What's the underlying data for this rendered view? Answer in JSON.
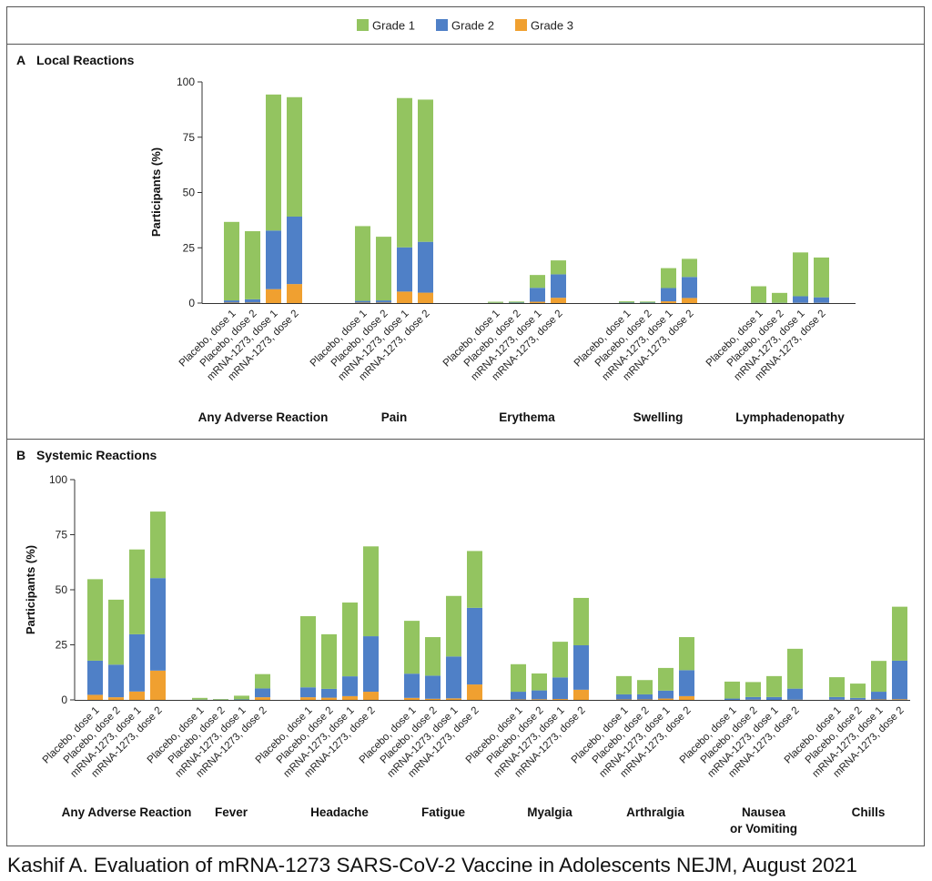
{
  "caption": "Kashif A. Evaluation of mRNA-1273 SARS-CoV-2 Vaccine in Adolescents NEJM, August 2021",
  "colors": {
    "Grade 1": "#93c460",
    "Grade 2": "#4f80c7",
    "Grade 3": "#f0a030",
    "frame": "#555555"
  },
  "chart_data": {
    "type": "bar",
    "stacked": true,
    "legend": {
      "position": "top-center",
      "entries": [
        "Grade 1",
        "Grade 2",
        "Grade 3"
      ]
    },
    "bar_labels": [
      "Placebo, dose 1",
      "Placebo, dose 2",
      "mRNA-1273, dose 1",
      "mRNA-1273, dose 2"
    ],
    "panels": [
      {
        "letter": "A",
        "title": "Local Reactions",
        "ylabel": "Participants (%)",
        "ylim": [
          0,
          100
        ],
        "yticks": [
          0,
          25,
          50,
          75,
          100
        ],
        "groups": [
          {
            "name": "Any Adverse Reaction",
            "bars": [
              {
                "grade1": 35.5,
                "grade2": 1.0,
                "grade3": 0.2
              },
              {
                "grade1": 30.8,
                "grade2": 1.5,
                "grade3": 0.2
              },
              {
                "grade1": 61.5,
                "grade2": 26.5,
                "grade3": 6.3
              },
              {
                "grade1": 54.0,
                "grade2": 30.5,
                "grade3": 8.6
              }
            ]
          },
          {
            "name": "Pain",
            "bars": [
              {
                "grade1": 33.8,
                "grade2": 0.8,
                "grade3": 0.2
              },
              {
                "grade1": 28.8,
                "grade2": 1.0,
                "grade3": 0.2
              },
              {
                "grade1": 67.5,
                "grade2": 20.0,
                "grade3": 5.2
              },
              {
                "grade1": 64.3,
                "grade2": 23.0,
                "grade3": 4.7
              }
            ]
          },
          {
            "name": "Erythema",
            "bars": [
              {
                "grade1": 0.5,
                "grade2": 0.1,
                "grade3": 0
              },
              {
                "grade1": 0.5,
                "grade2": 0.2,
                "grade3": 0
              },
              {
                "grade1": 5.8,
                "grade2": 6.3,
                "grade3": 0.6
              },
              {
                "grade1": 6.3,
                "grade2": 10.6,
                "grade3": 2.4
              }
            ]
          },
          {
            "name": "Swelling",
            "bars": [
              {
                "grade1": 0.6,
                "grade2": 0.2,
                "grade3": 0
              },
              {
                "grade1": 0.5,
                "grade2": 0.2,
                "grade3": 0
              },
              {
                "grade1": 9.0,
                "grade2": 6.0,
                "grade3": 0.8
              },
              {
                "grade1": 8.2,
                "grade2": 9.5,
                "grade3": 2.3
              }
            ]
          },
          {
            "name": "Lymphadenopathy",
            "bars": [
              {
                "grade1": 7.5,
                "grade2": 0.1,
                "grade3": 0
              },
              {
                "grade1": 4.5,
                "grade2": 0.1,
                "grade3": 0
              },
              {
                "grade1": 19.8,
                "grade2": 3.0,
                "grade3": 0.1
              },
              {
                "grade1": 18.0,
                "grade2": 2.5,
                "grade3": 0.1
              }
            ]
          }
        ]
      },
      {
        "letter": "B",
        "title": "Systemic Reactions",
        "ylabel": "Participants (%)",
        "ylim": [
          0,
          100
        ],
        "yticks": [
          0,
          25,
          50,
          75,
          100
        ],
        "groups": [
          {
            "name": "Any Adverse Reaction",
            "bars": [
              {
                "grade1": 37.0,
                "grade2": 15.5,
                "grade3": 2.3
              },
              {
                "grade1": 29.5,
                "grade2": 14.8,
                "grade3": 1.2
              },
              {
                "grade1": 38.5,
                "grade2": 26.0,
                "grade3": 3.8
              },
              {
                "grade1": 30.2,
                "grade2": 42.0,
                "grade3": 13.3
              }
            ]
          },
          {
            "name": "Fever",
            "bars": [
              {
                "grade1": 0.8,
                "grade2": 0.1,
                "grade3": 0
              },
              {
                "grade1": 0.3,
                "grade2": 0.1,
                "grade3": 0
              },
              {
                "grade1": 1.7,
                "grade2": 0.2,
                "grade3": 0
              },
              {
                "grade1": 6.5,
                "grade2": 4.0,
                "grade3": 1.2
              }
            ]
          },
          {
            "name": "Headache",
            "bars": [
              {
                "grade1": 32.3,
                "grade2": 4.5,
                "grade3": 1.2
              },
              {
                "grade1": 24.8,
                "grade2": 4.0,
                "grade3": 1.0
              },
              {
                "grade1": 33.5,
                "grade2": 9.0,
                "grade3": 1.7
              },
              {
                "grade1": 40.8,
                "grade2": 25.2,
                "grade3": 3.7
              }
            ]
          },
          {
            "name": "Fatigue",
            "bars": [
              {
                "grade1": 24.0,
                "grade2": 11.0,
                "grade3": 0.9
              },
              {
                "grade1": 17.5,
                "grade2": 10.5,
                "grade3": 0.5
              },
              {
                "grade1": 27.5,
                "grade2": 19.0,
                "grade3": 0.7
              },
              {
                "grade1": 25.8,
                "grade2": 34.8,
                "grade3": 7.0
              }
            ]
          },
          {
            "name": "Myalgia",
            "bars": [
              {
                "grade1": 12.5,
                "grade2": 3.5,
                "grade3": 0.2
              },
              {
                "grade1": 7.7,
                "grade2": 4.0,
                "grade3": 0.3
              },
              {
                "grade1": 16.2,
                "grade2": 9.8,
                "grade3": 0.4
              },
              {
                "grade1": 21.5,
                "grade2": 20.2,
                "grade3": 4.6
              }
            ]
          },
          {
            "name": "Arthralgia",
            "bars": [
              {
                "grade1": 8.3,
                "grade2": 2.3,
                "grade3": 0.2
              },
              {
                "grade1": 6.5,
                "grade2": 2.3,
                "grade3": 0.2
              },
              {
                "grade1": 10.3,
                "grade2": 3.6,
                "grade3": 0.6
              },
              {
                "grade1": 15.0,
                "grade2": 11.8,
                "grade3": 1.7
              }
            ]
          },
          {
            "name": "Nausea\nor Vomiting",
            "bars": [
              {
                "grade1": 7.7,
                "grade2": 0.6,
                "grade3": 0
              },
              {
                "grade1": 6.8,
                "grade2": 1.2,
                "grade3": 0.1
              },
              {
                "grade1": 9.5,
                "grade2": 1.3,
                "grade3": 0
              },
              {
                "grade1": 18.1,
                "grade2": 5.0,
                "grade3": 0.1
              }
            ]
          },
          {
            "name": "Chills",
            "bars": [
              {
                "grade1": 9.0,
                "grade2": 1.2,
                "grade3": 0.1
              },
              {
                "grade1": 6.5,
                "grade2": 0.8,
                "grade3": 0.1
              },
              {
                "grade1": 14.0,
                "grade2": 3.5,
                "grade3": 0.2
              },
              {
                "grade1": 24.5,
                "grade2": 17.5,
                "grade3": 0.3
              }
            ]
          }
        ]
      }
    ]
  }
}
